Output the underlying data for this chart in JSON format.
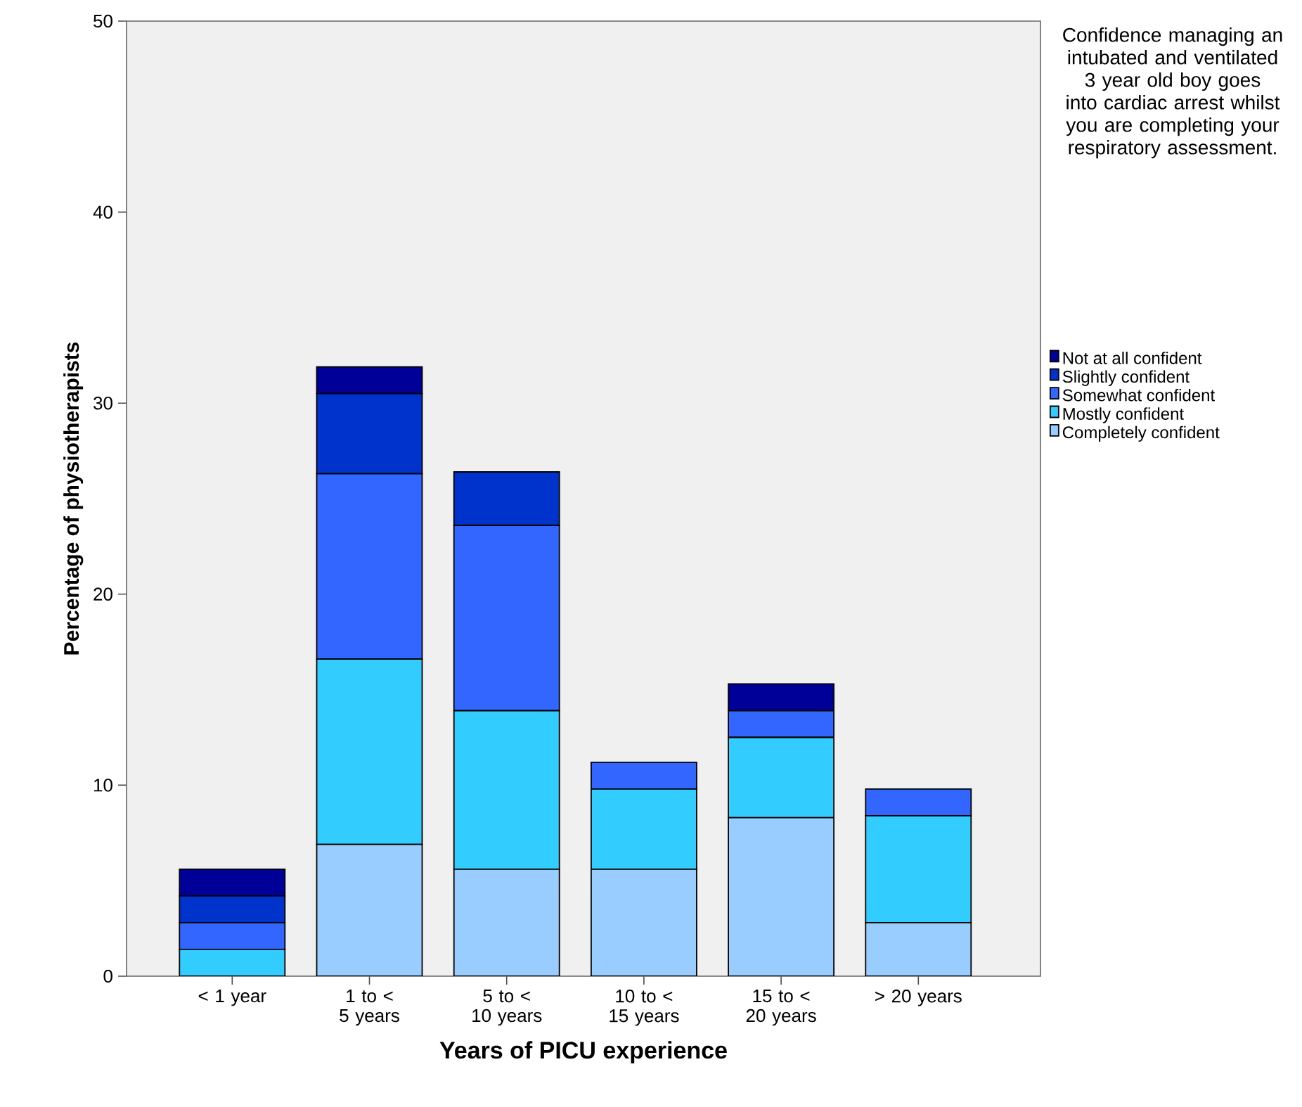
{
  "chart_data": {
    "type": "bar",
    "stacked": true,
    "xlabel": "Years of PICU experience",
    "ylabel": "Percentage of physiotherapists",
    "legend_title": "Confidence managing an intubated and ventilated 3 year old boy goes into cardiac arrest whilst you are completing your respiratory assessment.",
    "categories": [
      "< 1 year",
      "1 to < 5 years",
      "5 to < 10 years",
      "10 to < 15 years",
      "15 to < 20 years",
      "> 20 years"
    ],
    "series": [
      {
        "name": "Completely confident",
        "color": "#99ccff",
        "values": [
          0,
          6.9,
          5.6,
          5.6,
          8.3,
          2.8
        ]
      },
      {
        "name": "Mostly confident",
        "color": "#33ccff",
        "values": [
          1.4,
          9.7,
          8.3,
          4.2,
          4.2,
          5.6
        ]
      },
      {
        "name": "Somewhat confident",
        "color": "#3366ff",
        "values": [
          1.4,
          9.7,
          9.7,
          1.4,
          1.4,
          1.4
        ]
      },
      {
        "name": "Slightly confident",
        "color": "#0033cc",
        "values": [
          1.4,
          4.2,
          2.8,
          0,
          0,
          0
        ]
      },
      {
        "name": "Not at all confident",
        "color": "#000099",
        "values": [
          1.4,
          1.4,
          0,
          0,
          1.4,
          0
        ]
      }
    ],
    "ylim": [
      0,
      50
    ],
    "yticks": [
      0,
      10,
      20,
      30,
      40,
      50
    ],
    "grid": false,
    "legend": "right"
  }
}
